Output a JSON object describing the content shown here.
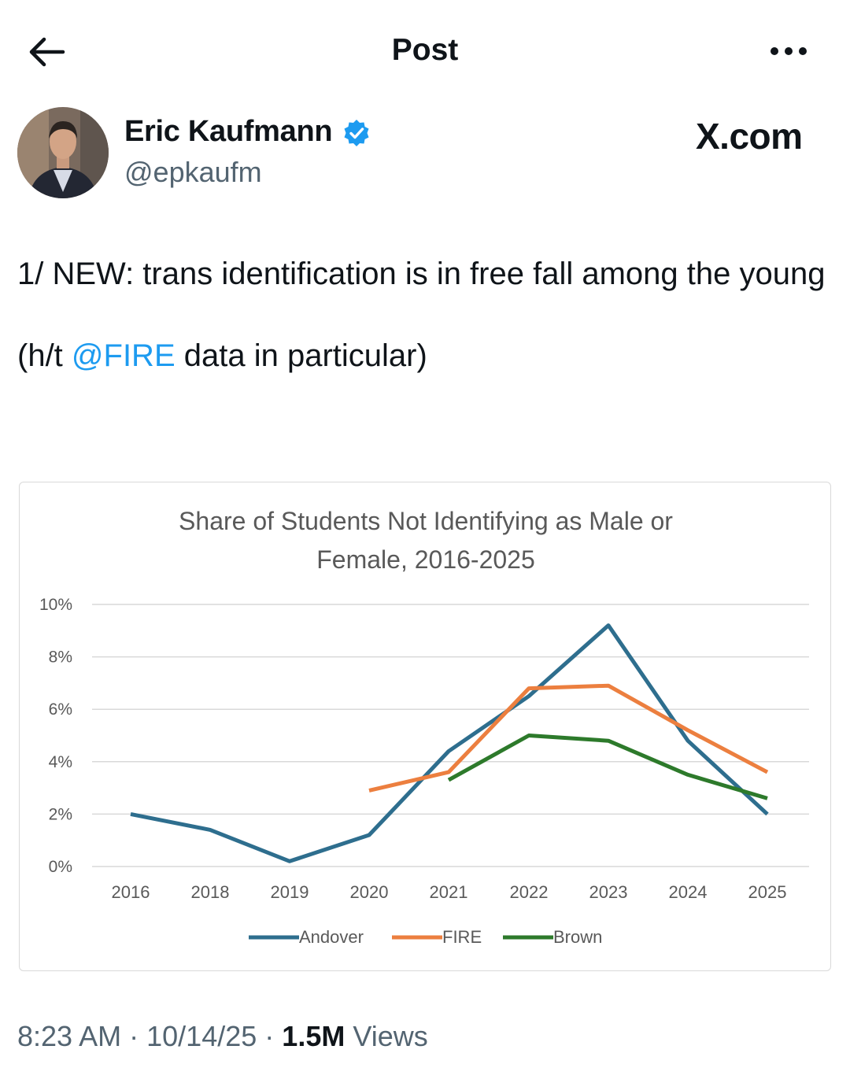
{
  "header": {
    "title": "Post",
    "back_icon": "arrow-left-icon",
    "more_icon": "more-horizontal-icon"
  },
  "author": {
    "name": "Eric Kaufmann",
    "handle": "@epkaufm",
    "verified": true,
    "verified_color": "#1d9bf0"
  },
  "watermark": "X.com",
  "post": {
    "line1": "1/ NEW: trans identification is in free fall among the young",
    "line2_prefix": "(h/t ",
    "line2_mention": "@FIRE",
    "line2_suffix": " data in particular)",
    "mention_color": "#1d9bf0"
  },
  "chart_data": {
    "type": "line",
    "title_lines": [
      "Share of Students Not Identifying as Male or",
      "Female, 2016-2025"
    ],
    "categories": [
      "2016",
      "2018",
      "2019",
      "2020",
      "2021",
      "2022",
      "2023",
      "2024",
      "2025"
    ],
    "y_ticks": [
      "10%",
      "8%",
      "6%",
      "4%",
      "2%",
      "0%"
    ],
    "ylim": [
      0,
      10
    ],
    "grid": true,
    "legend_position": "bottom",
    "series": [
      {
        "name": "Andover",
        "color": "#2e6e8e",
        "values": [
          2.0,
          1.4,
          0.2,
          1.2,
          4.4,
          6.5,
          9.2,
          4.8,
          2.0
        ]
      },
      {
        "name": "FIRE",
        "color": "#ec7f3f",
        "values": [
          null,
          null,
          null,
          2.9,
          3.6,
          6.8,
          6.9,
          5.2,
          3.6
        ]
      },
      {
        "name": "Brown",
        "color": "#2d7a2b",
        "values": [
          null,
          null,
          null,
          null,
          3.3,
          5.0,
          4.8,
          3.5,
          2.6
        ]
      }
    ]
  },
  "footer": {
    "time": "8:23 AM",
    "date": "10/14/25",
    "views_count": "1.5M",
    "views_label": "Views",
    "separator": "·"
  }
}
